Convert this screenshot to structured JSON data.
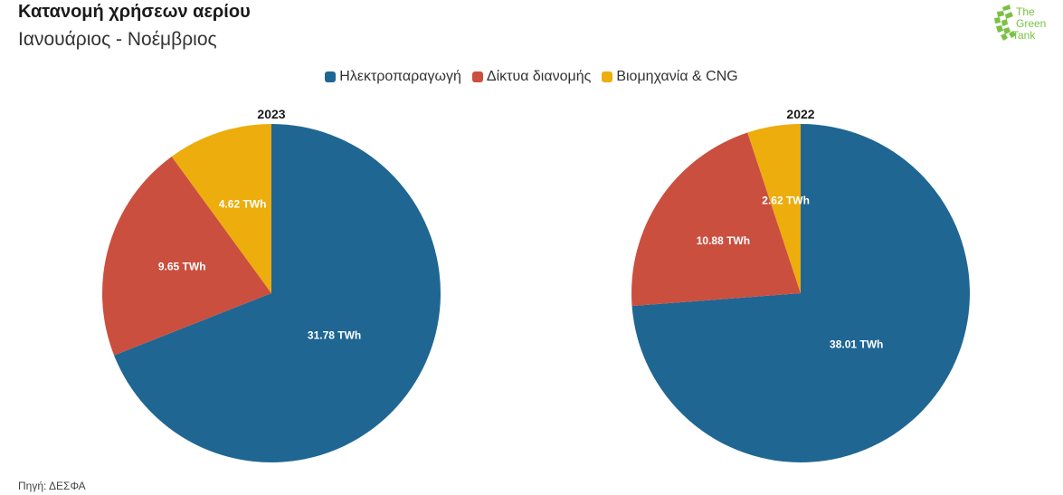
{
  "header": {
    "title": "Κατανομή χρήσεων αερίου",
    "subtitle": "Ιανουάριος - Νοέμβριος"
  },
  "logo": {
    "line1": "The",
    "line2": "Green",
    "line3": "Tank",
    "color": "#7ac143"
  },
  "legend": [
    {
      "label": "Ηλεκτροπαραγωγή",
      "color": "#1f6693"
    },
    {
      "label": "Δίκτυα διανομής",
      "color": "#cb4f3e"
    },
    {
      "label": "Βιομηχανία & CNG",
      "color": "#ecad0d"
    }
  ],
  "chart_data": [
    {
      "type": "pie",
      "title": "2023",
      "categories": [
        "Ηλεκτροπαραγωγή",
        "Δίκτυα διανομής",
        "Βιομηχανία & CNG"
      ],
      "values": [
        31.78,
        9.65,
        4.62
      ],
      "labels": [
        "31.78 TWh",
        "9.65 TWh",
        "4.62 TWh"
      ],
      "colors": [
        "#1f6693",
        "#cb4f3e",
        "#ecad0d"
      ]
    },
    {
      "type": "pie",
      "title": "2022",
      "categories": [
        "Ηλεκτροπαραγωγή",
        "Δίκτυα διανομής",
        "Βιομηχανία & CNG"
      ],
      "values": [
        38.01,
        10.88,
        2.62
      ],
      "labels": [
        "38.01 TWh",
        "10.88 TWh",
        "2.62 TWh"
      ],
      "colors": [
        "#1f6693",
        "#cb4f3e",
        "#ecad0d"
      ]
    }
  ],
  "footer": {
    "source": "Πηγή: ΔΕΣΦΑ"
  }
}
